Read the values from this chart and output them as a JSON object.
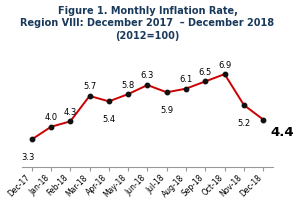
{
  "title_line1": "Figure 1. Monthly Inflation Rate,",
  "title_line2": "Region VIII: December 2017  – December 2018",
  "title_line3": "(2012=100)",
  "categories": [
    "Dec-17",
    "Jan-18",
    "Feb-18",
    "Mar-18",
    "Apr-18",
    "May-18",
    "Jun-18",
    "Jul-18",
    "Aug-18",
    "Sep-18",
    "Oct-18",
    "Nov-18",
    "Dec-18"
  ],
  "values": [
    3.3,
    4.0,
    4.3,
    5.7,
    5.4,
    5.8,
    6.3,
    5.9,
    6.1,
    6.5,
    6.9,
    5.2,
    4.4
  ],
  "line_color": "#cc0000",
  "marker_color": "#111111",
  "background_color": "#ffffff",
  "title_color": "#1a3a5c",
  "label_fontsize": 6.0,
  "title_fontsize": 7.0,
  "last_label_fontsize": 9.5,
  "ylim": [
    1.8,
    8.5
  ],
  "label_offsets": [
    [
      -3,
      -9,
      "center",
      "top"
    ],
    [
      0,
      4,
      "center",
      "bottom"
    ],
    [
      0,
      4,
      "center",
      "bottom"
    ],
    [
      0,
      4,
      "center",
      "bottom"
    ],
    [
      0,
      -9,
      "center",
      "top"
    ],
    [
      0,
      4,
      "center",
      "bottom"
    ],
    [
      0,
      4,
      "center",
      "bottom"
    ],
    [
      0,
      -9,
      "center",
      "top"
    ],
    [
      0,
      4,
      "center",
      "bottom"
    ],
    [
      0,
      4,
      "center",
      "bottom"
    ],
    [
      0,
      4,
      "center",
      "bottom"
    ],
    [
      0,
      -9,
      "center",
      "top"
    ],
    [
      4,
      -2,
      "left",
      "center"
    ]
  ]
}
